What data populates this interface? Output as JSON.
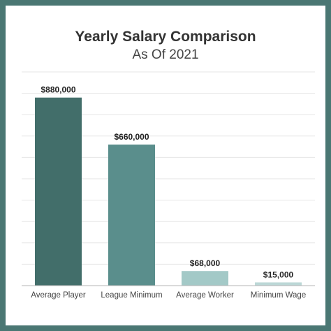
{
  "colors": {
    "frame": "#4a7773",
    "bar_colors": [
      "#426e6a",
      "#5a8e8c",
      "#a3c9c7",
      "#bcd7d6"
    ],
    "grid": "#e6e6e6",
    "axis": "#b5b5b5"
  },
  "chart_data": {
    "type": "bar",
    "title": "Yearly Salary Comparison",
    "subtitle": "As Of 2021",
    "categories": [
      "Average Player",
      "League Minimum",
      "Average Worker",
      "Minimum Wage"
    ],
    "values": [
      880000,
      660000,
      68000,
      15000
    ],
    "value_labels": [
      "$880,000",
      "$660,000",
      "$68,000",
      "$15,000"
    ],
    "ylim": [
      0,
      1000000
    ],
    "grid": true,
    "legend": "none"
  }
}
